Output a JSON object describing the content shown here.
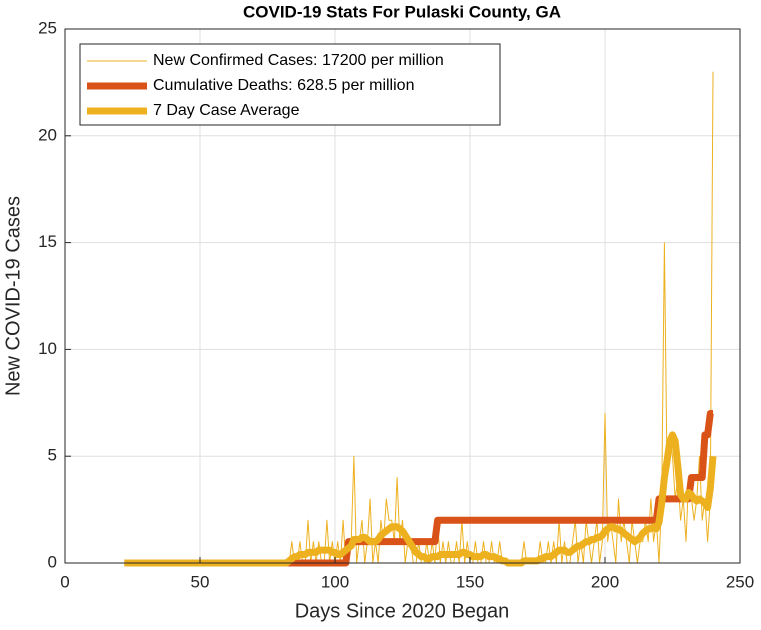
{
  "chart_data": {
    "type": "line",
    "title": "COVID-19 Stats For Pulaski County, GA",
    "x_label": "Days Since 2020 Began",
    "y_label": "New COVID-19 Cases",
    "xlim": [
      0,
      250
    ],
    "xticks": [
      0,
      50,
      100,
      150,
      200,
      250
    ],
    "ylim": [
      0,
      25
    ],
    "yticks": [
      0,
      5,
      10,
      15,
      20,
      25
    ],
    "grid": true,
    "legend": "upper left",
    "x": [
      22,
      23,
      24,
      25,
      26,
      27,
      28,
      29,
      30,
      31,
      32,
      33,
      34,
      35,
      36,
      37,
      38,
      39,
      40,
      41,
      42,
      43,
      44,
      45,
      46,
      47,
      48,
      49,
      50,
      51,
      52,
      53,
      54,
      55,
      56,
      57,
      58,
      59,
      60,
      61,
      62,
      63,
      64,
      65,
      66,
      67,
      68,
      69,
      70,
      71,
      72,
      73,
      74,
      75,
      76,
      77,
      78,
      79,
      80,
      81,
      82,
      83,
      84,
      85,
      86,
      87,
      88,
      89,
      90,
      91,
      92,
      93,
      94,
      95,
      96,
      97,
      98,
      99,
      100,
      101,
      102,
      103,
      104,
      105,
      106,
      107,
      108,
      109,
      110,
      111,
      112,
      113,
      114,
      115,
      116,
      117,
      118,
      119,
      120,
      121,
      122,
      123,
      124,
      125,
      126,
      127,
      128,
      129,
      130,
      131,
      132,
      133,
      134,
      135,
      136,
      137,
      138,
      139,
      140,
      141,
      142,
      143,
      144,
      145,
      146,
      147,
      148,
      149,
      150,
      151,
      152,
      153,
      154,
      155,
      156,
      157,
      158,
      159,
      160,
      161,
      162,
      163,
      164,
      165,
      166,
      167,
      168,
      169,
      170,
      171,
      172,
      173,
      174,
      175,
      176,
      177,
      178,
      179,
      180,
      181,
      182,
      183,
      184,
      185,
      186,
      187,
      188,
      189,
      190,
      191,
      192,
      193,
      194,
      195,
      196,
      197,
      198,
      199,
      200,
      201,
      202,
      203,
      204,
      205,
      206,
      207,
      208,
      209,
      210,
      211,
      212,
      213,
      214,
      215,
      216,
      217,
      218,
      219,
      220,
      221,
      222,
      223,
      224,
      225,
      226,
      227,
      228,
      229,
      230,
      231,
      232,
      233,
      234,
      235,
      236,
      237,
      238,
      239,
      240
    ],
    "series": [
      {
        "name": "New Confirmed Cases: 17200 per million",
        "color": "#EDB120",
        "width": 1,
        "values": [
          0,
          0,
          0,
          0,
          0,
          0,
          0,
          0,
          0,
          0,
          0,
          0,
          0,
          0,
          0,
          0,
          0,
          0,
          0,
          0,
          0,
          0,
          0,
          0,
          0,
          0,
          0,
          0,
          0,
          0,
          0,
          0,
          0,
          0,
          0,
          0,
          0,
          0,
          0,
          0,
          0,
          0,
          0,
          0,
          0,
          0,
          0,
          0,
          0,
          0,
          0,
          0,
          0,
          0,
          0,
          0,
          0,
          0,
          0,
          0,
          0,
          0,
          1,
          0,
          0,
          1,
          0,
          0,
          2,
          0,
          1,
          0,
          1,
          0,
          0,
          2,
          0,
          1,
          0,
          1,
          0,
          2,
          0,
          1,
          1,
          5,
          0,
          1,
          2,
          0,
          1,
          3,
          0,
          1,
          0,
          2,
          1,
          3,
          2,
          2,
          1,
          4,
          1,
          2,
          0,
          1,
          1,
          0,
          0,
          1,
          0,
          0,
          1,
          0,
          1,
          0,
          2,
          0,
          1,
          0,
          1,
          0,
          0,
          1,
          0,
          2,
          0,
          1,
          0,
          0,
          1,
          0,
          0,
          1,
          0,
          0,
          1,
          0,
          0,
          1,
          0,
          0,
          0,
          0,
          0,
          0,
          0,
          0,
          1,
          0,
          0,
          0,
          0,
          0,
          1,
          0,
          0,
          1,
          0,
          1,
          0,
          2,
          0,
          1,
          0,
          0,
          1,
          2,
          0,
          1,
          0,
          2,
          1,
          0,
          1,
          2,
          0,
          1,
          7,
          1,
          2,
          1,
          0,
          3,
          1,
          2,
          1,
          0,
          2,
          1,
          0,
          1,
          1,
          2,
          1,
          3,
          1,
          2,
          0,
          3,
          15,
          4,
          6,
          5,
          3,
          4,
          2,
          3,
          1,
          4,
          3,
          2,
          3,
          5,
          2,
          3,
          1,
          3,
          23
        ]
      },
      {
        "name": "Cumulative Deaths: 628.5 per million",
        "color": "#D95319",
        "width": 7,
        "values": [
          0,
          0,
          0,
          0,
          0,
          0,
          0,
          0,
          0,
          0,
          0,
          0,
          0,
          0,
          0,
          0,
          0,
          0,
          0,
          0,
          0,
          0,
          0,
          0,
          0,
          0,
          0,
          0,
          0,
          0,
          0,
          0,
          0,
          0,
          0,
          0,
          0,
          0,
          0,
          0,
          0,
          0,
          0,
          0,
          0,
          0,
          0,
          0,
          0,
          0,
          0,
          0,
          0,
          0,
          0,
          0,
          0,
          0,
          0,
          0,
          0,
          0,
          0,
          0,
          0,
          0,
          0,
          0,
          0,
          0,
          0,
          0,
          0,
          0,
          0,
          0,
          0,
          0,
          0,
          0,
          0,
          0,
          0,
          1,
          1,
          1,
          1,
          1,
          1,
          1,
          1,
          1,
          1,
          1,
          1,
          1,
          1,
          1,
          1,
          1,
          1,
          1,
          1,
          1,
          1,
          1,
          1,
          1,
          1,
          1,
          1,
          1,
          1,
          1,
          1,
          1,
          2,
          2,
          2,
          2,
          2,
          2,
          2,
          2,
          2,
          2,
          2,
          2,
          2,
          2,
          2,
          2,
          2,
          2,
          2,
          2,
          2,
          2,
          2,
          2,
          2,
          2,
          2,
          2,
          2,
          2,
          2,
          2,
          2,
          2,
          2,
          2,
          2,
          2,
          2,
          2,
          2,
          2,
          2,
          2,
          2,
          2,
          2,
          2,
          2,
          2,
          2,
          2,
          2,
          2,
          2,
          2,
          2,
          2,
          2,
          2,
          2,
          2,
          2,
          2,
          2,
          2,
          2,
          2,
          2,
          2,
          2,
          2,
          2,
          2,
          2,
          2,
          2,
          2,
          2,
          2,
          2,
          2,
          3,
          3,
          3,
          3,
          3,
          3,
          3,
          3,
          3,
          3,
          3,
          3,
          4,
          4,
          4,
          4,
          4,
          6,
          6,
          7,
          7
        ]
      },
      {
        "name": "7 Day Case Average",
        "color": "#EDB120",
        "width": 7,
        "values": [
          0,
          0,
          0,
          0,
          0,
          0,
          0,
          0,
          0,
          0,
          0,
          0,
          0,
          0,
          0,
          0,
          0,
          0,
          0,
          0,
          0,
          0,
          0,
          0,
          0,
          0,
          0,
          0,
          0,
          0,
          0,
          0,
          0,
          0,
          0,
          0,
          0,
          0,
          0,
          0,
          0,
          0,
          0,
          0,
          0,
          0,
          0,
          0,
          0,
          0,
          0,
          0,
          0,
          0,
          0,
          0,
          0,
          0,
          0,
          0,
          0,
          0.1,
          0.2,
          0.3,
          0.3,
          0.4,
          0.4,
          0.4,
          0.5,
          0.5,
          0.5,
          0.5,
          0.6,
          0.6,
          0.6,
          0.6,
          0.6,
          0.5,
          0.5,
          0.4,
          0.4,
          0.5,
          0.6,
          0.7,
          0.8,
          1.1,
          1.1,
          1.1,
          1.2,
          1.2,
          1.1,
          1.0,
          1.0,
          1.0,
          1.1,
          1.3,
          1.4,
          1.5,
          1.6,
          1.7,
          1.7,
          1.7,
          1.6,
          1.5,
          1.3,
          1.1,
          0.9,
          0.7,
          0.5,
          0.4,
          0.3,
          0.3,
          0.2,
          0.2,
          0.3,
          0.3,
          0.3,
          0.4,
          0.4,
          0.4,
          0.4,
          0.4,
          0.4,
          0.4,
          0.4,
          0.5,
          0.5,
          0.4,
          0.4,
          0.3,
          0.3,
          0.3,
          0.3,
          0.4,
          0.4,
          0.3,
          0.3,
          0.3,
          0.2,
          0.2,
          0.1,
          0.1,
          0,
          0,
          0,
          0,
          0,
          0,
          0.1,
          0.1,
          0.1,
          0.1,
          0.1,
          0.1,
          0.2,
          0.2,
          0.3,
          0.3,
          0.3,
          0.4,
          0.5,
          0.6,
          0.6,
          0.6,
          0.5,
          0.5,
          0.6,
          0.7,
          0.8,
          0.8,
          0.9,
          1.0,
          1.0,
          1.1,
          1.1,
          1.2,
          1.2,
          1.3,
          1.5,
          1.6,
          1.7,
          1.7,
          1.6,
          1.6,
          1.5,
          1.4,
          1.3,
          1.2,
          1.1,
          1.0,
          1.1,
          1.2,
          1.4,
          1.5,
          1.6,
          1.6,
          1.7,
          1.6,
          1.9,
          2.8,
          4.0,
          4.8,
          5.7,
          6.0,
          5.7,
          4.5,
          3.2,
          3.0,
          3.0,
          3.3,
          3.2,
          3.0,
          2.9,
          3.0,
          2.9,
          2.8,
          2.6,
          3.5,
          5.0
        ]
      }
    ]
  }
}
